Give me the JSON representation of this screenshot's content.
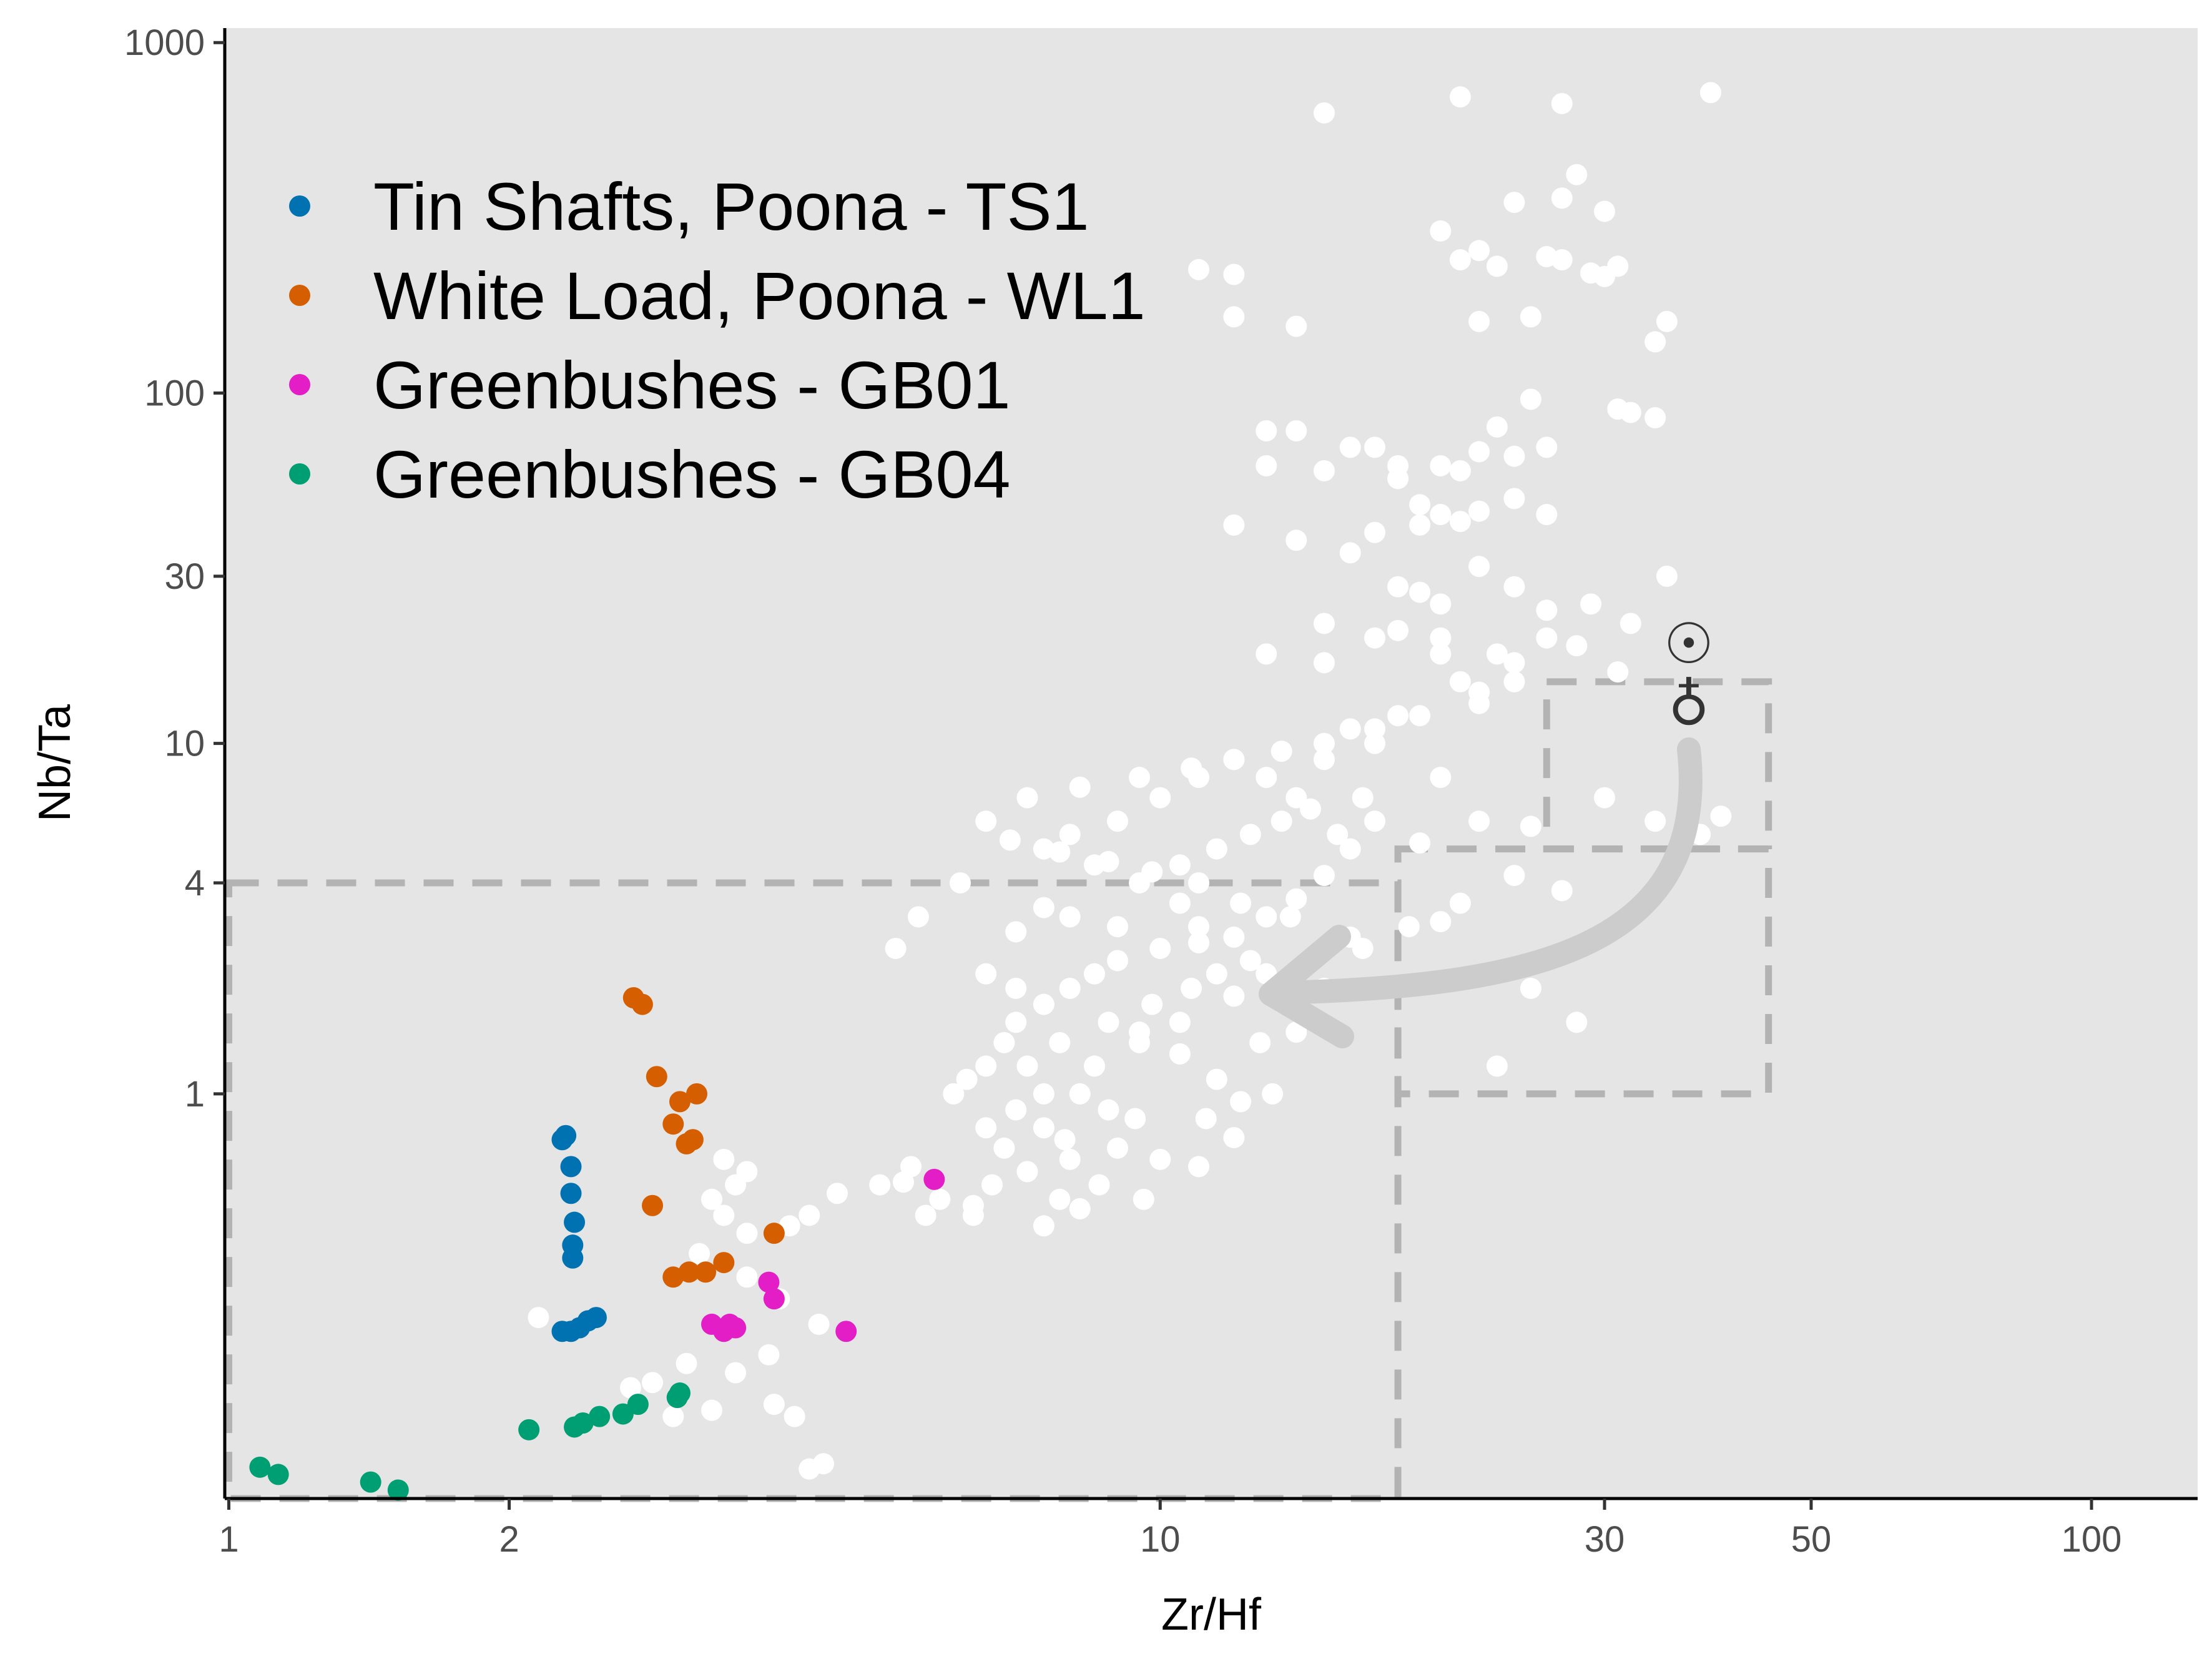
{
  "chart_data": {
    "type": "scatter",
    "xlabel": "Zr/Hf",
    "ylabel": "Nb/Ta",
    "x_scale": "log",
    "y_scale": "log",
    "xlim": [
      0.99,
      130
    ],
    "ylim": [
      0.07,
      1100
    ],
    "x_ticks": [
      1,
      2,
      10,
      30,
      50,
      100
    ],
    "x_tick_labels": [
      "1",
      "2",
      "10",
      "30",
      "50",
      "100"
    ],
    "y_ticks": [
      1,
      4,
      10,
      30,
      100,
      1000
    ],
    "y_tick_labels": [
      "1",
      "4",
      "10",
      "30",
      "100",
      "1000"
    ],
    "legend_position": "top-left",
    "background_color": "#e5e5e5",
    "grid": false,
    "symbols": [
      "☉",
      "♁"
    ],
    "series": [
      {
        "name": "Tin Shafts, Poona - TS1",
        "color": "#0072b2",
        "points": [
          [
            2.28,
            0.74
          ],
          [
            2.3,
            0.76
          ],
          [
            2.33,
            0.62
          ],
          [
            2.33,
            0.52
          ],
          [
            2.35,
            0.43
          ],
          [
            2.34,
            0.37
          ],
          [
            2.34,
            0.34
          ],
          [
            2.28,
            0.21
          ],
          [
            2.33,
            0.21
          ],
          [
            2.38,
            0.215
          ],
          [
            2.43,
            0.225
          ],
          [
            2.48,
            0.23
          ]
        ]
      },
      {
        "name": "White Load, Poona - WL1",
        "color": "#d55e00",
        "points": [
          [
            2.72,
            1.88
          ],
          [
            2.78,
            1.8
          ],
          [
            2.88,
            1.12
          ],
          [
            3.05,
            0.95
          ],
          [
            3.18,
            1.0
          ],
          [
            3.0,
            0.82
          ],
          [
            3.1,
            0.72
          ],
          [
            3.15,
            0.74
          ],
          [
            2.85,
            0.48
          ],
          [
            3.0,
            0.3
          ],
          [
            3.12,
            0.31
          ],
          [
            3.25,
            0.31
          ],
          [
            3.4,
            0.33
          ],
          [
            3.85,
            0.4
          ]
        ]
      },
      {
        "name": "Greenbushes - GB01",
        "color": "#e41ec7",
        "points": [
          [
            5.72,
            0.57
          ],
          [
            3.8,
            0.29
          ],
          [
            3.85,
            0.26
          ],
          [
            4.6,
            0.21
          ],
          [
            3.3,
            0.22
          ],
          [
            3.4,
            0.21
          ],
          [
            3.5,
            0.215
          ],
          [
            3.45,
            0.22
          ]
        ]
      },
      {
        "name": "Greenbushes - GB04",
        "color": "#009e73",
        "points": [
          [
            2.1,
            0.11
          ],
          [
            2.35,
            0.112
          ],
          [
            2.4,
            0.115
          ],
          [
            2.5,
            0.12
          ],
          [
            2.65,
            0.122
          ],
          [
            2.75,
            0.13
          ],
          [
            3.03,
            0.136
          ],
          [
            3.05,
            0.14
          ],
          [
            1.08,
            0.086
          ],
          [
            1.13,
            0.082
          ],
          [
            1.42,
            0.078
          ],
          [
            1.52,
            0.074
          ]
        ]
      },
      {
        "name": "",
        "color": "#ffffff",
        "points": [
          [
            39,
            720
          ],
          [
            21,
            700
          ],
          [
            15,
            630
          ],
          [
            27,
            670
          ],
          [
            28,
            420
          ],
          [
            27,
            360
          ],
          [
            24,
            350
          ],
          [
            30,
            330
          ],
          [
            20,
            290
          ],
          [
            22,
            255
          ],
          [
            21,
            240
          ],
          [
            23,
            230
          ],
          [
            26,
            245
          ],
          [
            27,
            240
          ],
          [
            29,
            220
          ],
          [
            30,
            215
          ],
          [
            31,
            230
          ],
          [
            11,
            225
          ],
          [
            12,
            218
          ],
          [
            12,
            165
          ],
          [
            14,
            155
          ],
          [
            22,
            160
          ],
          [
            25,
            165
          ],
          [
            35,
            160
          ],
          [
            34,
            140
          ],
          [
            31,
            90
          ],
          [
            32,
            88
          ],
          [
            34,
            85
          ],
          [
            25,
            96
          ],
          [
            23,
            80
          ],
          [
            22,
            68
          ],
          [
            24,
            66
          ],
          [
            21,
            60
          ],
          [
            18,
            62
          ],
          [
            20,
            62
          ],
          [
            26,
            70
          ],
          [
            13,
            62
          ],
          [
            15,
            60
          ],
          [
            18,
            57
          ],
          [
            13,
            78
          ],
          [
            14,
            78
          ],
          [
            16,
            70
          ],
          [
            17,
            70
          ],
          [
            19,
            48
          ],
          [
            20,
            45
          ],
          [
            21,
            43
          ],
          [
            22,
            46
          ],
          [
            19,
            42
          ],
          [
            17,
            40
          ],
          [
            16,
            35
          ],
          [
            14,
            38
          ],
          [
            12,
            42
          ],
          [
            24,
            50
          ],
          [
            26,
            45
          ],
          [
            22,
            32
          ],
          [
            24,
            28
          ],
          [
            26,
            24
          ],
          [
            29,
            25
          ],
          [
            32,
            22
          ],
          [
            35,
            30
          ],
          [
            18,
            28
          ],
          [
            19,
            27
          ],
          [
            20,
            25
          ],
          [
            18,
            21
          ],
          [
            15,
            22
          ],
          [
            13,
            18
          ],
          [
            15,
            17
          ],
          [
            17,
            20
          ],
          [
            20,
            18
          ],
          [
            23,
            18
          ],
          [
            26,
            20
          ],
          [
            28,
            19
          ],
          [
            31,
            16
          ],
          [
            21,
            15
          ],
          [
            24,
            17
          ],
          [
            22,
            13
          ],
          [
            18,
            12
          ],
          [
            16,
            11
          ],
          [
            15,
            9
          ],
          [
            17,
            10
          ],
          [
            20,
            8
          ],
          [
            14,
            7
          ],
          [
            13,
            8
          ],
          [
            12,
            9
          ],
          [
            11,
            8
          ],
          [
            10,
            7
          ],
          [
            9,
            6
          ],
          [
            8,
            5.5
          ],
          [
            7.5,
            5
          ],
          [
            8.5,
            4.5
          ],
          [
            9.5,
            4
          ],
          [
            10.5,
            3.5
          ],
          [
            11,
            3
          ],
          [
            12,
            2.8
          ],
          [
            13,
            3.2
          ],
          [
            14,
            3.6
          ],
          [
            15,
            4.2
          ],
          [
            16,
            5
          ],
          [
            17,
            6
          ],
          [
            9,
            2.4
          ],
          [
            8.5,
            2.2
          ],
          [
            8,
            2.0
          ],
          [
            7.5,
            1.8
          ],
          [
            7,
            1.6
          ],
          [
            6.8,
            1.4
          ],
          [
            6.5,
            1.2
          ],
          [
            6.2,
            1.1
          ],
          [
            6,
            1.0
          ],
          [
            7.2,
            1.2
          ],
          [
            7.8,
            1.4
          ],
          [
            8.8,
            1.6
          ],
          [
            9.8,
            1.8
          ],
          [
            10.8,
            2.0
          ],
          [
            11.5,
            2.2
          ],
          [
            12.5,
            2.4
          ],
          [
            10,
            2.6
          ],
          [
            11,
            2.7
          ],
          [
            9,
            3.0
          ],
          [
            8,
            3.2
          ],
          [
            7.5,
            3.4
          ],
          [
            7,
            2.9
          ],
          [
            9.5,
            1.5
          ],
          [
            10.5,
            1.3
          ],
          [
            11.5,
            1.1
          ],
          [
            12.2,
            0.95
          ],
          [
            8.2,
            1.0
          ],
          [
            8.8,
            0.9
          ],
          [
            9.4,
            0.85
          ],
          [
            7.5,
            0.8
          ],
          [
            6.8,
            0.7
          ],
          [
            8.0,
            0.65
          ],
          [
            7.2,
            0.6
          ],
          [
            6.6,
            0.55
          ],
          [
            7.8,
            0.5
          ],
          [
            8.6,
            0.55
          ],
          [
            9.6,
            0.5
          ],
          [
            6.3,
            0.48
          ],
          [
            5.6,
            0.45
          ],
          [
            5,
            0.55
          ],
          [
            4.5,
            0.52
          ],
          [
            4.2,
            0.45
          ],
          [
            4,
            0.42
          ],
          [
            3.6,
            0.4
          ],
          [
            3.4,
            0.45
          ],
          [
            3.3,
            0.5
          ],
          [
            3.5,
            0.55
          ],
          [
            3.6,
            0.6
          ],
          [
            3.4,
            0.65
          ],
          [
            3.2,
            0.35
          ],
          [
            3.6,
            0.3
          ],
          [
            3.9,
            0.26
          ],
          [
            4.3,
            0.22
          ],
          [
            3.8,
            0.18
          ],
          [
            3.5,
            0.16
          ],
          [
            3.1,
            0.17
          ],
          [
            2.85,
            0.15
          ],
          [
            2.7,
            0.145
          ],
          [
            3.0,
            0.12
          ],
          [
            3.3,
            0.125
          ],
          [
            3.85,
            0.13
          ],
          [
            4.05,
            0.12
          ],
          [
            2.15,
            0.23
          ],
          [
            4.2,
            0.085
          ],
          [
            4.35,
            0.088
          ],
          [
            6.1,
            4.0
          ],
          [
            5.5,
            3.2
          ],
          [
            5.2,
            2.6
          ],
          [
            6.5,
            2.2
          ],
          [
            7,
            2.0
          ],
          [
            10.5,
            4.5
          ],
          [
            11.5,
            5.0
          ],
          [
            12.5,
            5.5
          ],
          [
            13.5,
            6.0
          ],
          [
            14.5,
            6.5
          ],
          [
            15.5,
            5.5
          ],
          [
            16.5,
            7.0
          ],
          [
            19,
            5.2
          ],
          [
            22,
            6.0
          ],
          [
            25,
            5.8
          ],
          [
            27,
            3.8
          ],
          [
            24,
            4.2
          ],
          [
            21,
            3.5
          ],
          [
            18.5,
            3.0
          ],
          [
            16.5,
            2.6
          ],
          [
            14.5,
            2.4
          ],
          [
            13,
            2.2
          ],
          [
            12,
            1.9
          ],
          [
            10.5,
            1.6
          ],
          [
            9.5,
            1.4
          ],
          [
            8.5,
            1.2
          ],
          [
            7.5,
            1.0
          ],
          [
            7,
            0.9
          ],
          [
            6.5,
            0.8
          ],
          [
            9,
            0.7
          ],
          [
            10,
            0.65
          ],
          [
            11,
            0.62
          ],
          [
            12,
            0.75
          ],
          [
            11.2,
            0.85
          ],
          [
            13.2,
            1.0
          ],
          [
            14,
            1.5
          ],
          [
            12.8,
            1.4
          ],
          [
            15,
            2.0
          ],
          [
            16,
            2.8
          ],
          [
            13.8,
            3.2
          ],
          [
            12.2,
            3.5
          ],
          [
            11,
            4.0
          ],
          [
            9.8,
            4.3
          ],
          [
            8.8,
            4.6
          ],
          [
            7.8,
            4.9
          ],
          [
            6.9,
            5.3
          ],
          [
            6.5,
            6.0
          ],
          [
            7.2,
            7.0
          ],
          [
            8.2,
            7.5
          ],
          [
            9.5,
            8.0
          ],
          [
            10.8,
            8.5
          ],
          [
            12,
            9.0
          ],
          [
            13.5,
            9.5
          ],
          [
            15,
            10
          ],
          [
            17,
            11
          ],
          [
            19,
            12
          ],
          [
            22,
            14
          ],
          [
            24,
            15
          ],
          [
            20,
            20
          ],
          [
            30,
            7
          ],
          [
            34,
            6
          ],
          [
            38,
            5.5
          ],
          [
            40,
            6.2
          ],
          [
            20,
            3.1
          ],
          [
            25,
            2.0
          ],
          [
            28,
            1.6
          ],
          [
            23,
            1.2
          ],
          [
            6.3,
            0.45
          ],
          [
            5.8,
            0.5
          ],
          [
            7.5,
            0.42
          ],
          [
            8.2,
            0.47
          ],
          [
            7.9,
            0.74
          ],
          [
            5.3,
            0.56
          ],
          [
            5.4,
            0.62
          ]
        ]
      }
    ],
    "regions": [
      {
        "x": [
          1,
          18
        ],
        "y": [
          0.07,
          4
        ]
      },
      {
        "x": [
          18,
          45
        ],
        "y": [
          1,
          5
        ]
      },
      {
        "x": [
          26,
          45
        ],
        "y": [
          5,
          15
        ]
      }
    ]
  }
}
